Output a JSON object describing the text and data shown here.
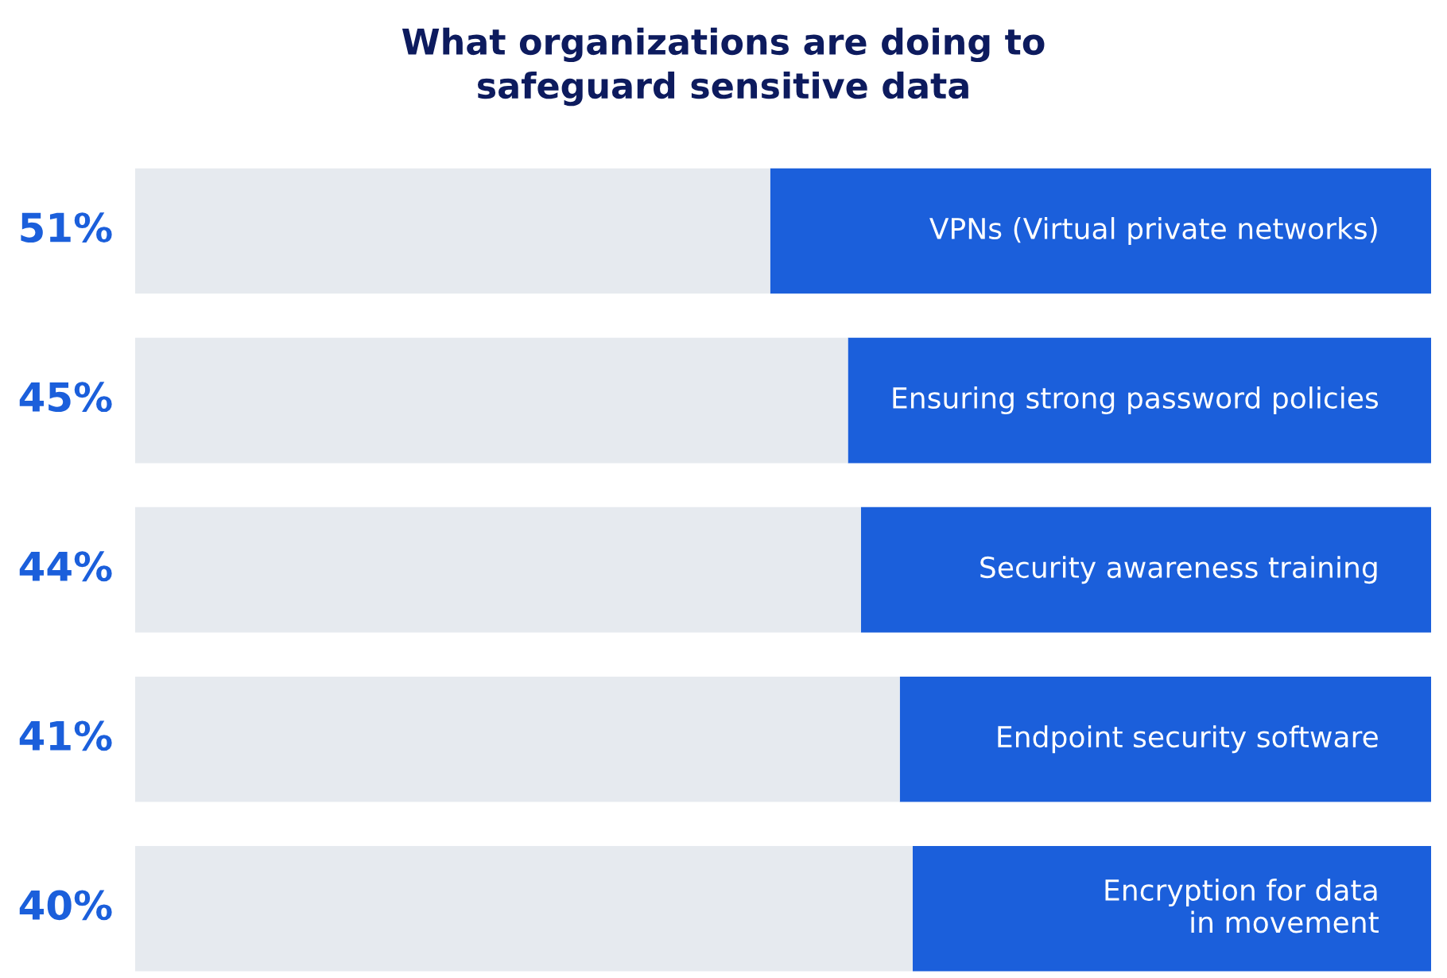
{
  "chart_data": {
    "type": "bar",
    "orientation": "horizontal",
    "stacked": true,
    "title": "What organizations are doing to\nsafeguard sensitive data",
    "categories": [
      "VPNs (Virtual private networks)",
      "Ensuring strong password policies",
      "Security awareness training",
      "Endpoint security software",
      "Encryption for data\nin movement"
    ],
    "series": [
      {
        "color": "#1b5fdb",
        "values": [
          51,
          45,
          44,
          41,
          40
        ],
        "value_labels": [
          "51%",
          "45%",
          "44%",
          "41%",
          "40%"
        ]
      },
      {
        "color": "#e6eaef",
        "values": [
          49,
          55,
          56,
          59,
          60
        ]
      }
    ],
    "xlim": [
      100,
      0
    ]
  }
}
